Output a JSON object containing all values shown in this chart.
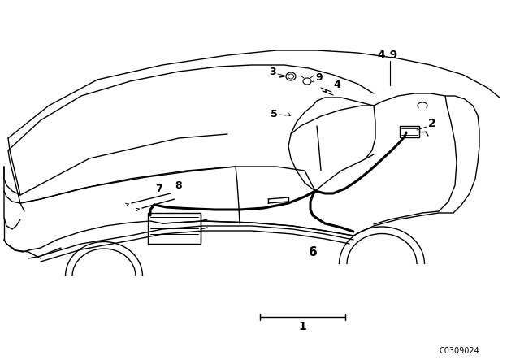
{
  "bg_color": "#ffffff",
  "catalog_number": "C0309024",
  "lw_body": 1.0,
  "lw_bold": 2.2,
  "fs_label": 9
}
